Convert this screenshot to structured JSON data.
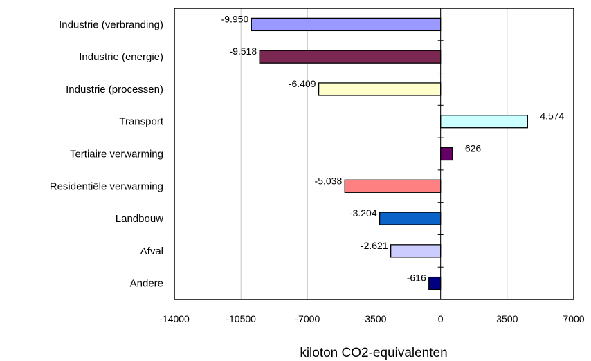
{
  "chart_data": {
    "type": "bar",
    "orientation": "horizontal",
    "categories": [
      "Industrie (verbranding)",
      "Industrie (energie)",
      "Industrie (processen)",
      "Transport",
      "Tertiaire verwarming",
      "Residentiële verwarming",
      "Landbouw",
      "Afval",
      "Andere"
    ],
    "values": [
      -9950,
      -9518,
      -6409,
      4574,
      626,
      -5038,
      -3204,
      -2621,
      -616
    ],
    "value_labels": [
      "-9.950",
      "-9.518",
      "-6.409",
      "4.574",
      "626",
      "-5.038",
      "-3.204",
      "-2.621",
      "-616"
    ],
    "colors": [
      "#9999ff",
      "#7a2852",
      "#ffffcc",
      "#ccffff",
      "#660066",
      "#ff8080",
      "#0a64c8",
      "#ccccff",
      "#000080"
    ],
    "xlabel": "kiloton CO2-equivalenten",
    "xlim": [
      -14000,
      7000
    ],
    "xticks": [
      -14000,
      -10500,
      -7000,
      -3500,
      0,
      3500,
      7000
    ],
    "xtick_labels": [
      "-14000",
      "-10500",
      "-7000",
      "-3500",
      "0",
      "3500",
      "7000"
    ],
    "grid": true
  }
}
